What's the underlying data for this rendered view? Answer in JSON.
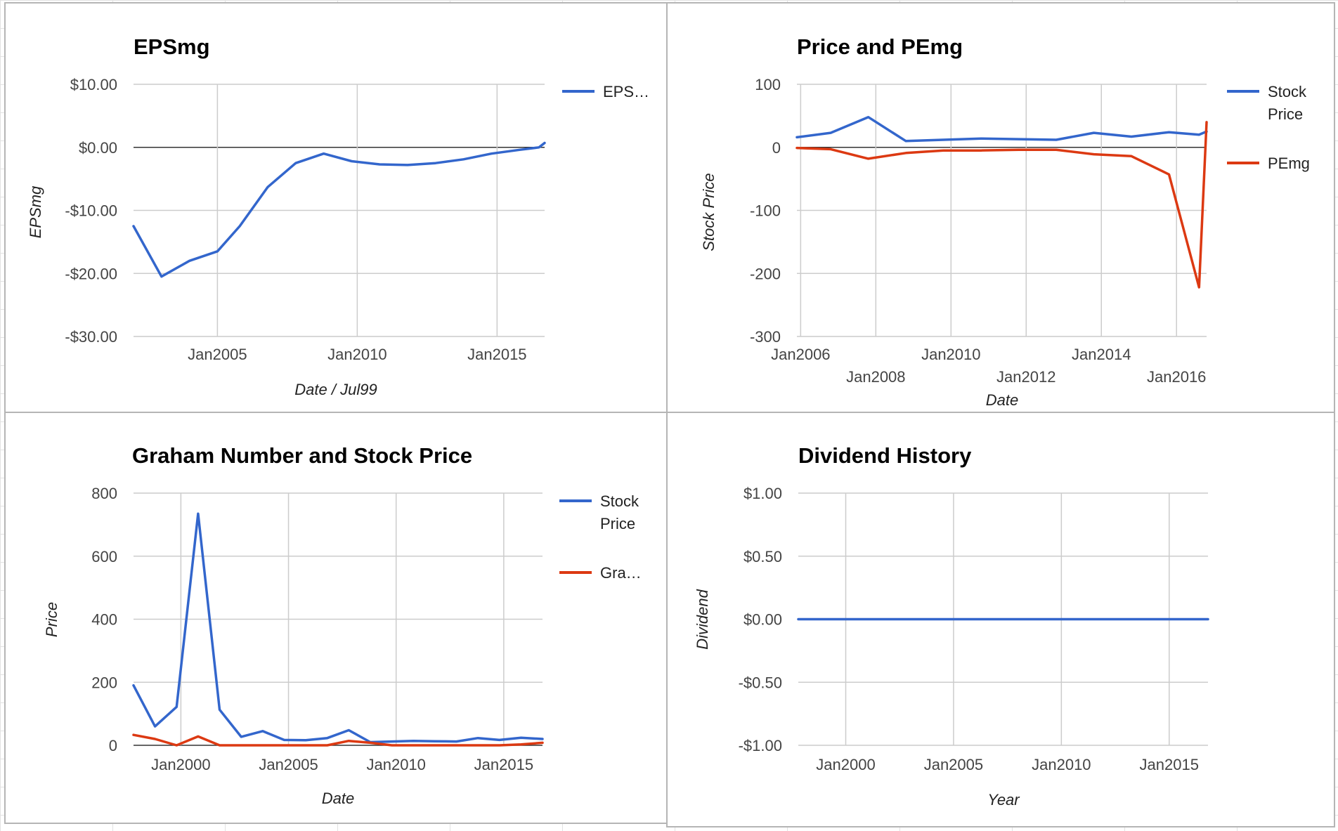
{
  "chart_data": [
    {
      "id": "eps",
      "type": "line",
      "title": "EPSmg",
      "xlabel": "Date / Jul99",
      "ylabel": "EPSmg",
      "xlim": [
        2002.0,
        2016.7
      ],
      "ylim": [
        -30,
        10
      ],
      "yticks": [
        10,
        0,
        -10,
        -20,
        -30
      ],
      "ytick_labels": [
        "$10.00",
        "$0.00",
        "-$10.00",
        "-$20.00",
        "-$30.00"
      ],
      "xticks": [
        2005,
        2010,
        2015
      ],
      "xtick_labels": [
        "Jan2005",
        "Jan2010",
        "Jan2015"
      ],
      "grid": true,
      "legend_position": "right",
      "series": [
        {
          "name": "EPS…",
          "color": "#3366cc",
          "x": [
            2002.0,
            2003.0,
            2004.0,
            2005.0,
            2005.8,
            2006.8,
            2007.8,
            2008.8,
            2009.8,
            2010.8,
            2011.8,
            2012.8,
            2013.8,
            2014.8,
            2015.8,
            2016.5,
            2016.7
          ],
          "y": [
            -12.5,
            -20.5,
            -18.0,
            -16.5,
            -12.5,
            -6.3,
            -2.5,
            -1.0,
            -2.2,
            -2.7,
            -2.8,
            -2.5,
            -1.9,
            -1.0,
            -0.4,
            0.0,
            0.7
          ]
        }
      ]
    },
    {
      "id": "pe",
      "type": "line",
      "title": "Price and PEmg",
      "xlabel": "Date",
      "ylabel": "Stock Price",
      "xlim": [
        2005.9,
        2016.8
      ],
      "ylim": [
        -300,
        100
      ],
      "yticks": [
        100,
        0,
        -100,
        -200,
        -300
      ],
      "ytick_labels": [
        "100",
        "0",
        "-100",
        "-200",
        "-300"
      ],
      "xticks": [
        2006,
        2008,
        2010,
        2012,
        2014,
        2016
      ],
      "xtick_labels": [
        "Jan2006",
        "Jan2008",
        "Jan2010",
        "Jan2012",
        "Jan2014",
        "Jan2016"
      ],
      "grid": true,
      "legend_position": "right",
      "series": [
        {
          "name": "Stock Price",
          "color": "#3366cc",
          "x": [
            2005.9,
            2006.8,
            2007.8,
            2008.8,
            2009.8,
            2010.8,
            2011.8,
            2012.8,
            2013.8,
            2014.8,
            2015.8,
            2016.6,
            2016.8
          ],
          "y": [
            16,
            23,
            48,
            10,
            12,
            14,
            13,
            12,
            23,
            17,
            24,
            20,
            25
          ]
        },
        {
          "name": "PEmg",
          "color": "#dc3912",
          "x": [
            2005.9,
            2006.8,
            2007.8,
            2008.8,
            2009.8,
            2010.8,
            2011.8,
            2012.8,
            2013.8,
            2014.8,
            2015.8,
            2016.6,
            2016.8
          ],
          "y": [
            -1,
            -3,
            -18,
            -9,
            -5,
            -5,
            -4,
            -4,
            -11,
            -14,
            -43,
            -222,
            40
          ]
        }
      ]
    },
    {
      "id": "graham",
      "type": "line",
      "title": "Graham Number and Stock Price",
      "xlabel": "Date",
      "ylabel": "Price",
      "xlim": [
        1997.8,
        2016.8
      ],
      "ylim": [
        0,
        800
      ],
      "yticks": [
        800,
        600,
        400,
        200,
        0
      ],
      "ytick_labels": [
        "800",
        "600",
        "400",
        "200",
        "0"
      ],
      "xticks": [
        2000,
        2005,
        2010,
        2015
      ],
      "xtick_labels": [
        "Jan2000",
        "Jan2005",
        "Jan2010",
        "Jan2015"
      ],
      "grid": true,
      "legend_position": "right",
      "series": [
        {
          "name": "Stock Price",
          "color": "#3366cc",
          "x": [
            1997.8,
            1998.8,
            1999.8,
            2000.8,
            2001.8,
            2002.8,
            2003.8,
            2004.8,
            2005.8,
            2006.8,
            2007.8,
            2008.8,
            2009.8,
            2010.8,
            2011.8,
            2012.8,
            2013.8,
            2014.8,
            2015.8,
            2016.8
          ],
          "y": [
            190,
            60,
            122,
            735,
            113,
            27,
            45,
            17,
            16,
            23,
            48,
            10,
            12,
            14,
            13,
            12,
            23,
            17,
            24,
            20
          ]
        },
        {
          "name": "Gra…",
          "color": "#dc3912",
          "x": [
            1997.8,
            1998.8,
            1999.8,
            2000.8,
            2001.8,
            2002.8,
            2003.8,
            2004.8,
            2005.8,
            2006.8,
            2007.8,
            2008.8,
            2009.8,
            2010.8,
            2011.8,
            2012.8,
            2013.8,
            2014.8,
            2015.8,
            2016.8
          ],
          "y": [
            33,
            20,
            0,
            28,
            0,
            0,
            0,
            0,
            0,
            0,
            14,
            8,
            0,
            0,
            0,
            0,
            0,
            0,
            3,
            8
          ]
        }
      ]
    },
    {
      "id": "div",
      "type": "line",
      "title": "Dividend History",
      "xlabel": "Year",
      "ylabel": "Dividend",
      "xlim": [
        1997.8,
        2016.8
      ],
      "ylim": [
        -1,
        1
      ],
      "yticks": [
        1,
        0.5,
        0,
        -0.5,
        -1
      ],
      "ytick_labels": [
        "$1.00",
        "$0.50",
        "$0.00",
        "-$0.50",
        "-$1.00"
      ],
      "xticks": [
        2000,
        2005,
        2010,
        2015
      ],
      "xtick_labels": [
        "Jan2000",
        "Jan2005",
        "Jan2010",
        "Jan2015"
      ],
      "grid": true,
      "legend_position": "none",
      "series": [
        {
          "name": "",
          "color": "#3366cc",
          "x": [
            1997.8,
            2016.8
          ],
          "y": [
            0,
            0
          ]
        }
      ]
    }
  ]
}
